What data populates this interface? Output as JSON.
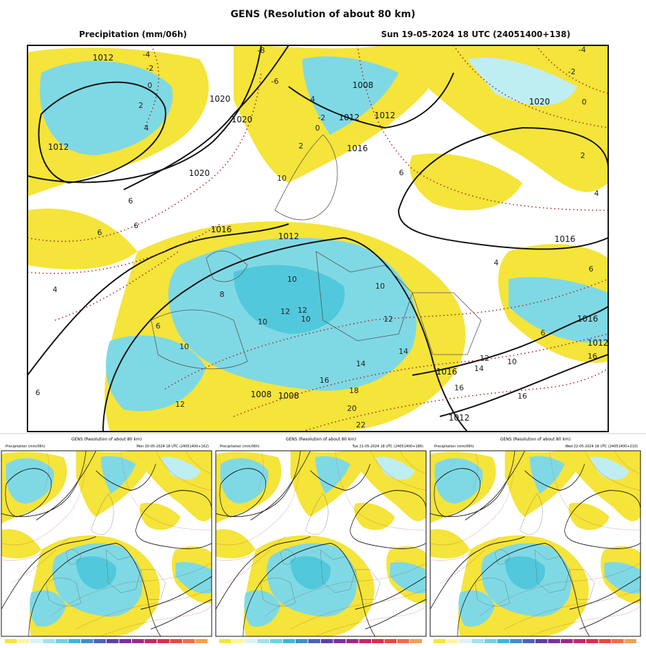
{
  "main": {
    "title": "GENS (Resolution of about 80 km)",
    "variable": "Precipitation (mm/06h)",
    "valid": "Sun 19-05-2024 18 UTC (24051400+138)",
    "isobar_labels": [
      "1012",
      "1012",
      "1020",
      "1020",
      "1020",
      "1016",
      "1012",
      "1008",
      "1012",
      "1012",
      "1016",
      "1020",
      "1016",
      "1016",
      "1012",
      "1016",
      "1012",
      "1008",
      "1008"
    ],
    "isotherm_labels": [
      "-4",
      "-2",
      "0",
      "2",
      "4",
      "6",
      "6",
      "6",
      "4",
      "6",
      "8",
      "10",
      "10",
      "10",
      "12",
      "12",
      "10",
      "10",
      "10",
      "12",
      "14",
      "14",
      "16",
      "18",
      "20",
      "22",
      "12",
      "6",
      "6",
      "12",
      "10",
      "14",
      "16",
      "16",
      "16",
      "4",
      "6",
      "4",
      "2",
      "0",
      "-2",
      "-4",
      "-8",
      "-6",
      "-4",
      "-2",
      "0",
      "2",
      "6"
    ]
  },
  "panels": [
    {
      "title": "GENS (Resolution of about 80 km)",
      "variable": "Precipitation (mm/06h)",
      "valid": "Mon 20-05-2024 18 UTC (24051400+162)"
    },
    {
      "title": "GENS (Resolution of about 80 km)",
      "variable": "Precipitation (mm/06h)",
      "valid": "Tue 21-05-2024 18 UTC (24051400+186)"
    },
    {
      "title": "GENS (Resolution of about 80 km)",
      "variable": "Precipitation (mm/06h)",
      "valid": "Wed 22-05-2024 18 UTC (24051400+210)"
    }
  ]
}
